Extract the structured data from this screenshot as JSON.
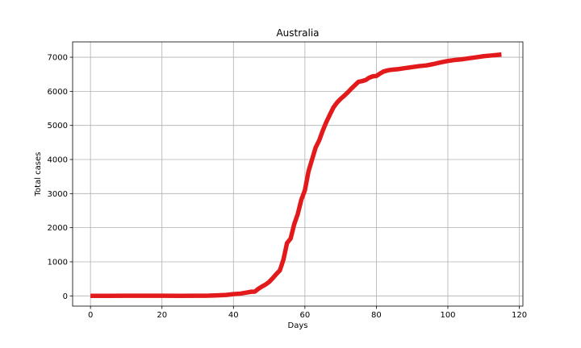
{
  "chart_data": {
    "type": "line",
    "title": "Australia",
    "xlabel": "Days",
    "ylabel": "Total cases",
    "xlim": [
      -5,
      121
    ],
    "ylim": [
      -300,
      7450
    ],
    "x_ticks": [
      0,
      20,
      40,
      60,
      80,
      100,
      120
    ],
    "y_ticks": [
      0,
      1000,
      2000,
      3000,
      4000,
      5000,
      6000,
      7000
    ],
    "grid": true,
    "line_color": "#e31a1c",
    "series": [
      {
        "x": [
          0,
          5,
          10,
          15,
          20,
          25,
          30,
          33,
          35,
          38,
          40,
          42,
          44,
          45,
          46,
          47,
          48,
          49,
          50,
          51,
          52,
          53,
          54,
          55,
          56,
          57,
          58,
          59,
          60,
          61,
          62,
          63,
          64,
          65,
          66,
          67,
          68,
          69,
          70,
          71,
          72,
          73,
          74,
          75,
          76,
          77,
          78,
          79,
          80,
          81,
          82,
          83,
          84,
          85,
          86,
          88,
          90,
          92,
          94,
          96,
          98,
          100,
          102,
          104,
          106,
          108,
          110,
          112,
          114,
          115
        ],
        "y": [
          0,
          1,
          3,
          4,
          3,
          2,
          3,
          6,
          14,
          27,
          52,
          68,
          104,
          122,
          126,
          210,
          275,
          333,
          410,
          520,
          640,
          750,
          1070,
          1550,
          1680,
          2100,
          2400,
          2820,
          3100,
          3650,
          4000,
          4350,
          4560,
          4850,
          5100,
          5320,
          5530,
          5670,
          5780,
          5870,
          5970,
          6080,
          6180,
          6280,
          6300,
          6330,
          6400,
          6440,
          6450,
          6520,
          6580,
          6610,
          6630,
          6640,
          6650,
          6680,
          6710,
          6740,
          6760,
          6800,
          6850,
          6890,
          6920,
          6940,
          6970,
          7000,
          7030,
          7050,
          7070,
          7080
        ]
      }
    ]
  }
}
